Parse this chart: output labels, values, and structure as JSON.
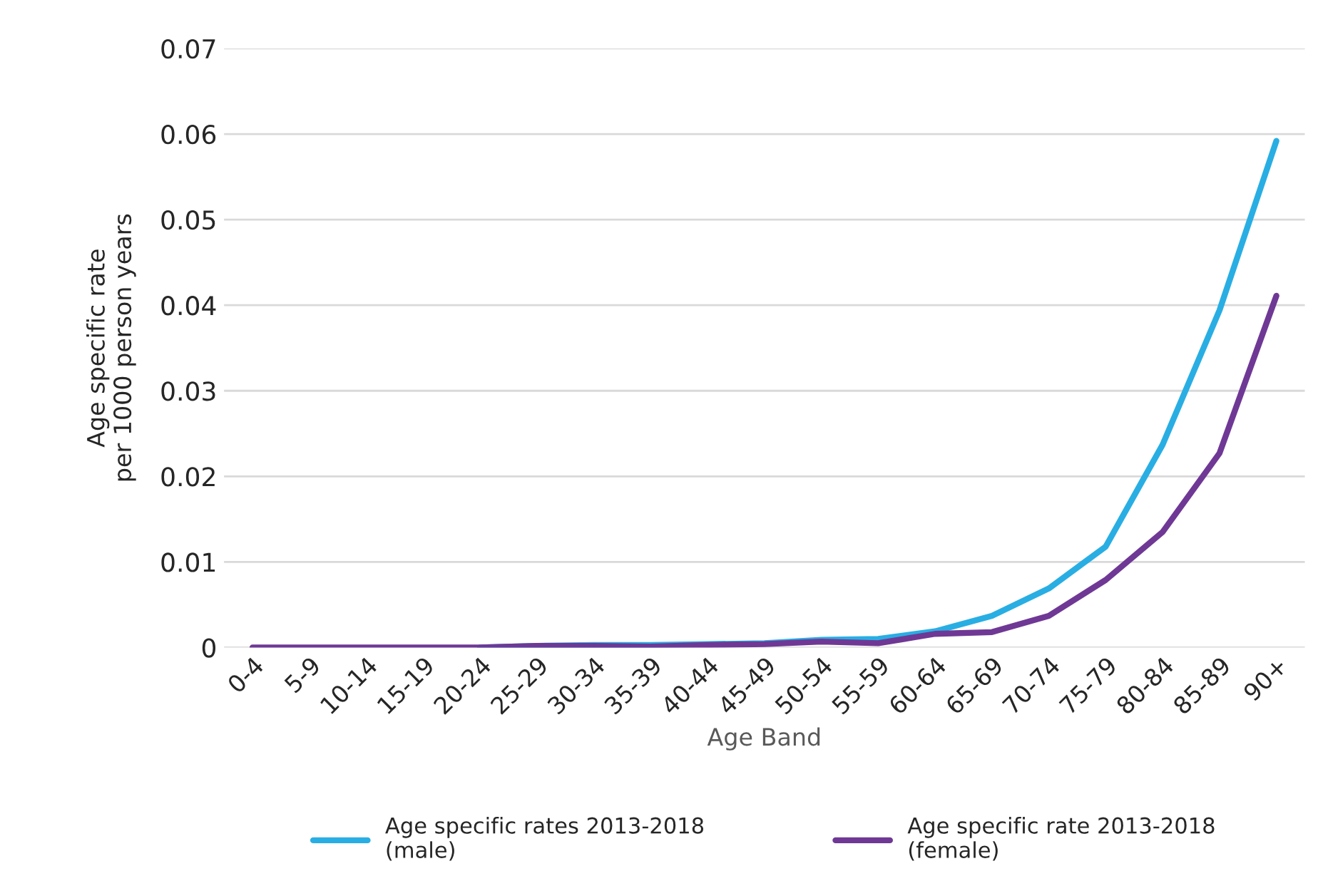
{
  "chart_data": {
    "type": "line",
    "xlabel": "Age Band",
    "ylabel": "Age specific rate\nper 1000 person years",
    "categories": [
      "0-4",
      "5-9",
      "10-14",
      "15-19",
      "20-24",
      "25-29",
      "30-34",
      "35-39",
      "40-44",
      "45-49",
      "50-54",
      "55-59",
      "60-64",
      "65-69",
      "70-74",
      "75-79",
      "80-84",
      "85-89",
      "90+"
    ],
    "series": [
      {
        "name": "Age specific rates 2013-2018\n(male)",
        "color": "#29aee3",
        "values": [
          null,
          null,
          null,
          null,
          0,
          0.0002,
          0.0003,
          0.0003,
          0.0004,
          0.0005,
          0.0009,
          0.001,
          0.0019,
          0.0037,
          0.0069,
          0.0118,
          0.0237,
          0.0394,
          0.0592
        ]
      },
      {
        "name": "Age specific rate 2013-2018\n(female)",
        "color": "#6f3895",
        "values": [
          0,
          0,
          0,
          0,
          0,
          0.0002,
          0.0002,
          0.0001,
          0.0003,
          0.0004,
          0.0007,
          0.0005,
          0.0016,
          0.0018,
          0.0037,
          0.0079,
          0.0135,
          0.0227,
          0.0411
        ]
      }
    ],
    "ylim": [
      0,
      0.07
    ],
    "yticks": [
      0,
      0.01,
      0.02,
      0.03,
      0.04,
      0.05,
      0.06,
      0.07
    ],
    "grid": "y",
    "legend": "bottom",
    "marker": "none",
    "line_style": "solid"
  }
}
